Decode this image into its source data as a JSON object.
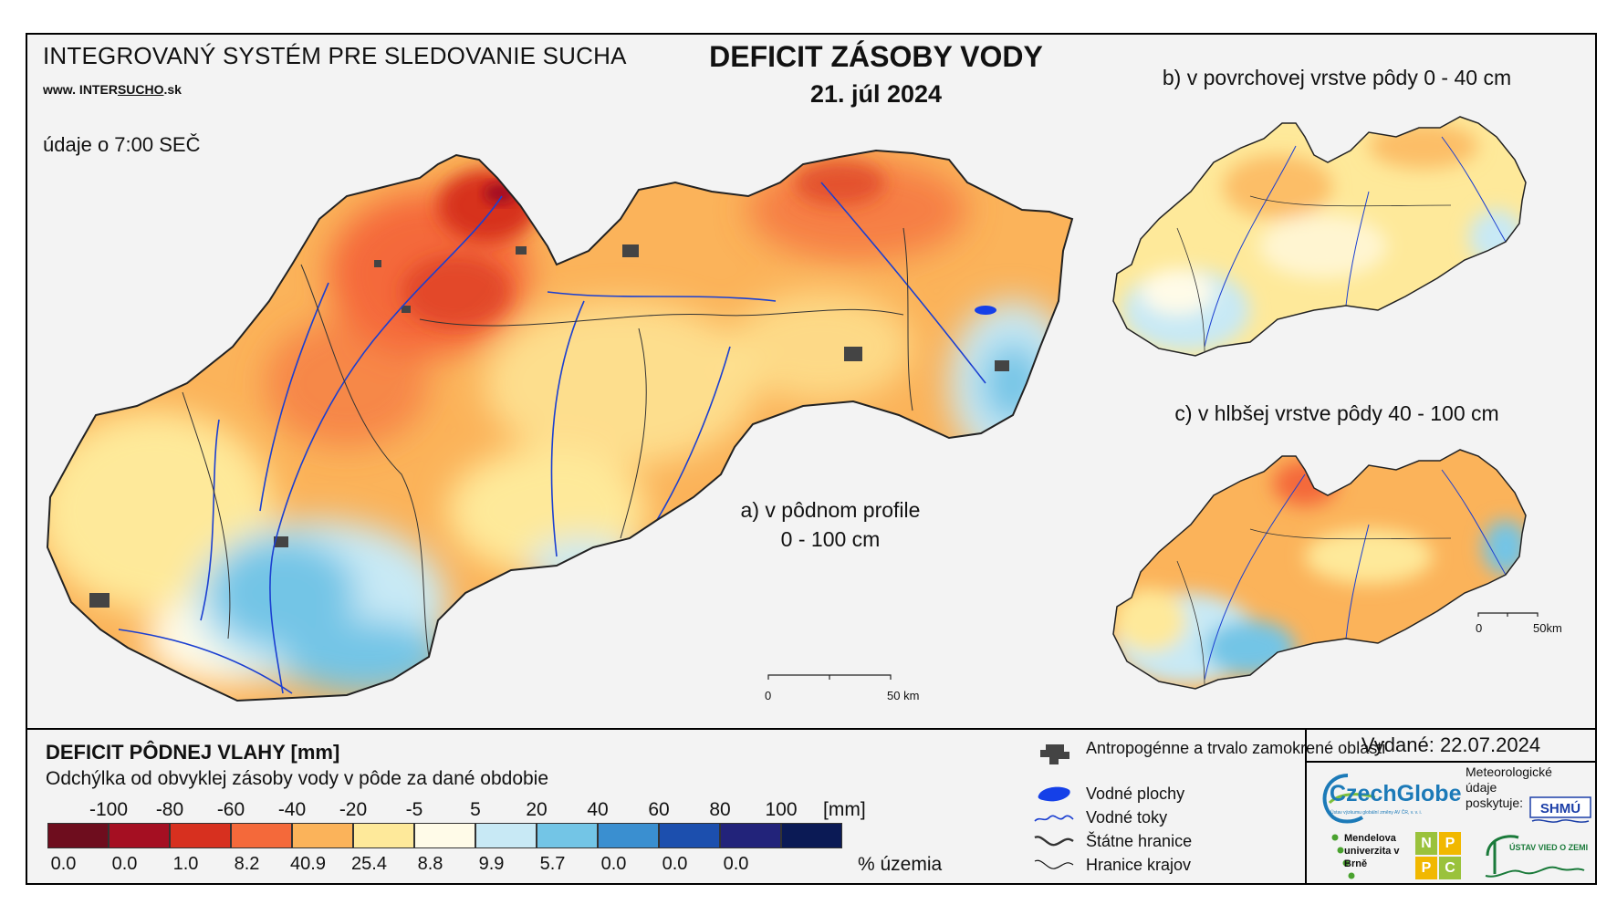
{
  "header": {
    "system_title": "INTEGROVANÝ SYSTÉM PRE SLEDOVANIE SUCHA",
    "website_prefix": "www. INTER",
    "website_mid": "SUCHO",
    "website_suffix": ".sk",
    "data_note": "údaje o 7:00 SEČ",
    "main_title": "DEFICIT ZÁSOBY VODY",
    "date": "21. júl 2024"
  },
  "maps": {
    "a_label_line1": "a) v pôdnom profile",
    "a_label_line2": "0 - 100 cm",
    "b_label": "b) v povrchovej vrstve pôdy 0 - 40 cm",
    "c_label": "c) v hlbšej vrstve pôdy 40 - 100 cm",
    "scale_main": {
      "start": "0",
      "end": "50 km"
    },
    "scale_small": {
      "start": "0",
      "end": "50km"
    }
  },
  "legend": {
    "title": "DEFICIT PÔDNEJ VLAHY [mm]",
    "subtitle": "Odchýlka od obvyklej zásoby vody v pôde za dané obdobie",
    "unit": "[mm]",
    "percent_label": "% územia",
    "ticks": [
      "-100",
      "-80",
      "-60",
      "-40",
      "-20",
      "-5",
      "5",
      "20",
      "40",
      "60",
      "80",
      "100"
    ],
    "classes": [
      {
        "color": "#6e0d1e",
        "percent": "0.0"
      },
      {
        "color": "#a50f22",
        "percent": "0.0"
      },
      {
        "color": "#d7301f",
        "percent": "1.0"
      },
      {
        "color": "#f4693a",
        "percent": "8.2"
      },
      {
        "color": "#fbb35a",
        "percent": "40.9"
      },
      {
        "color": "#fee99a",
        "percent": "25.4"
      },
      {
        "color": "#fffbe8",
        "percent": "8.8"
      },
      {
        "color": "#c8e9f5",
        "percent": "9.9"
      },
      {
        "color": "#73c5e6",
        "percent": "5.7"
      },
      {
        "color": "#3a8fd0",
        "percent": "0.0"
      },
      {
        "color": "#1c4fae",
        "percent": "0.0"
      },
      {
        "color": "#22237a",
        "percent": "0.0"
      },
      {
        "color": "#0b1a55",
        "percent": ""
      }
    ]
  },
  "map_key": {
    "anthropogenic": "Antropogénne a trvalo zamokrené oblasti",
    "water_bodies": "Vodné plochy",
    "water_streams": "Vodné toky",
    "state_borders": "Štátne hranice",
    "region_borders": "Hranice krajov"
  },
  "publisher": {
    "issued": "Vydané: 22.07.2024",
    "czechglobe": "CzechGlobe",
    "czechglobe_sub": "Ústav výzkumu globální změny AV ČR, v. v. i.",
    "met_data": "Meteorologické údaje poskytuje:",
    "mendel": "Mendelova univerzita v Brně",
    "nppc": [
      "N",
      "P",
      "P",
      "C"
    ],
    "uvz": "ÚSTAV VIED O ZEMI",
    "shmu": "SHMÚ"
  }
}
